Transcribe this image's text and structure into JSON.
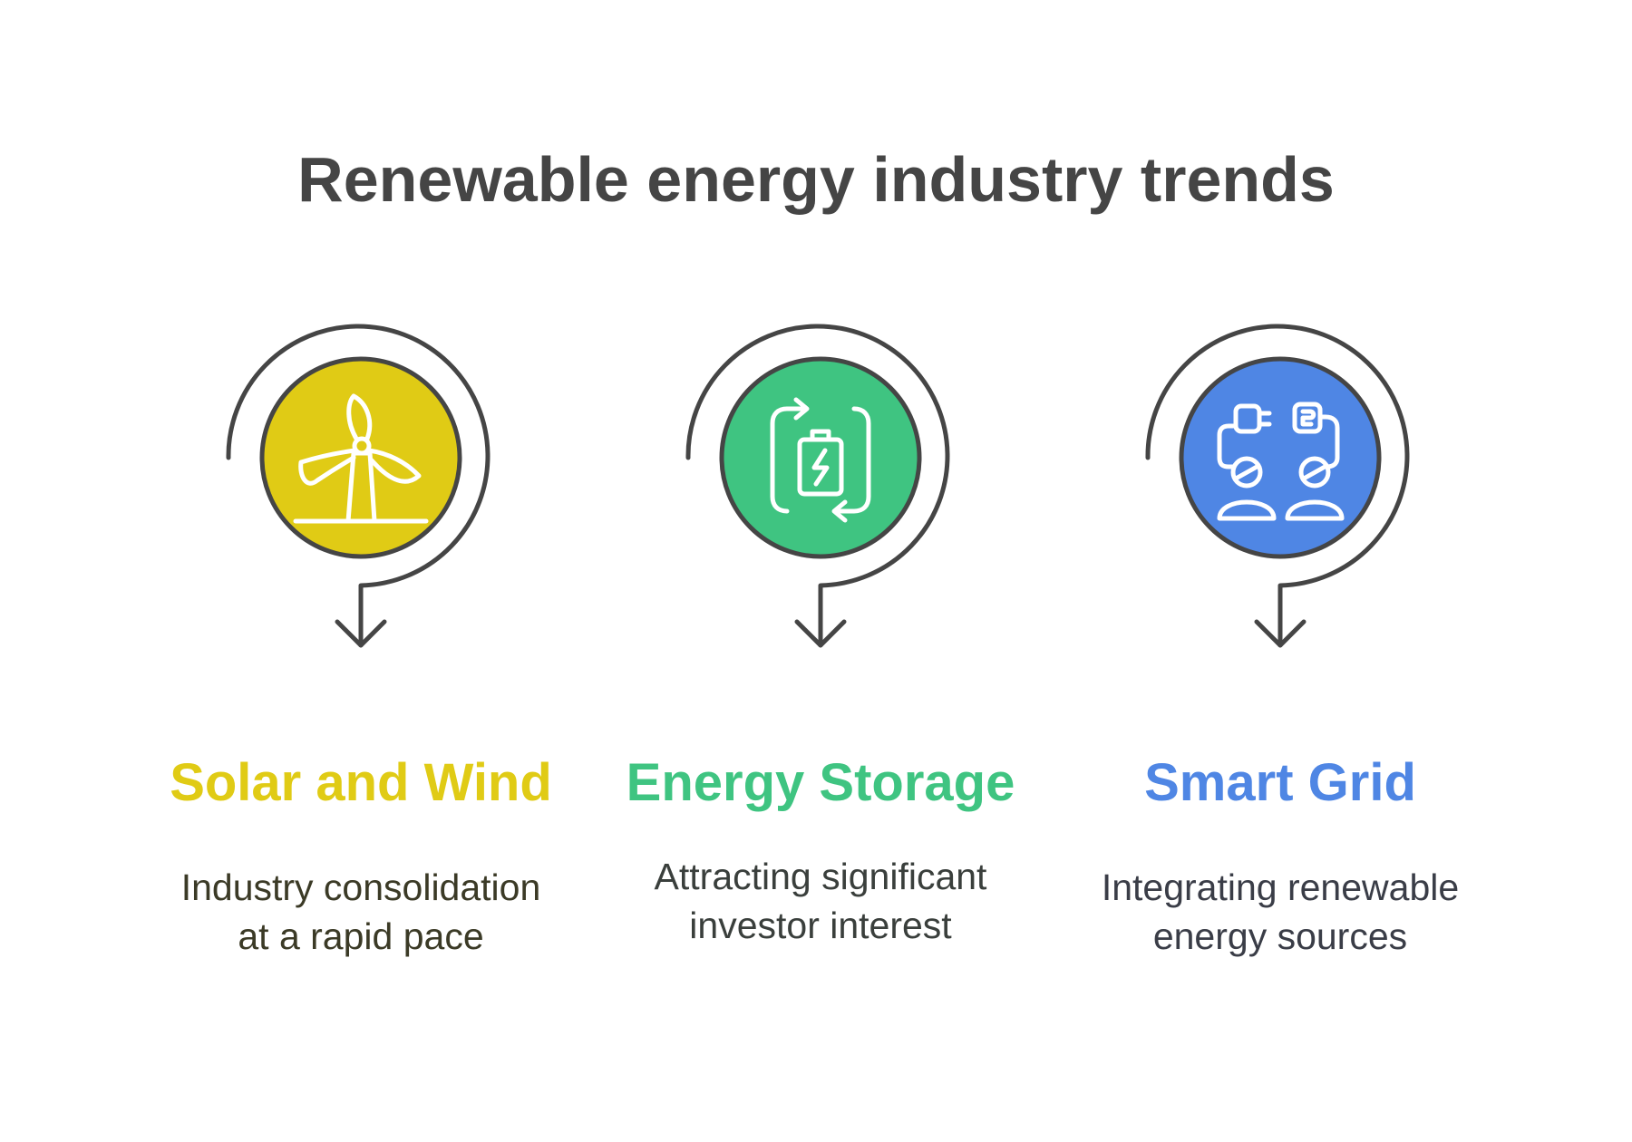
{
  "title": "Renewable energy industry trends",
  "items": [
    {
      "label": "Solar and Wind",
      "description": "Industry consolidation at a rapid pace",
      "color": "#E0CB15",
      "text_color": "#3B3A26",
      "icon": "wind-turbine-icon"
    },
    {
      "label": "Energy Storage",
      "description": "Attracting significant investor interest",
      "color": "#3FC481",
      "text_color": "#3A3F3C",
      "icon": "battery-charging-cycle-icon"
    },
    {
      "label": "Smart Grid",
      "description": "Integrating renewable energy sources",
      "color": "#4F86E4",
      "text_color": "#3A3D47",
      "icon": "plug-connection-people-icon"
    }
  ],
  "colors": {
    "title": "#454545",
    "stroke": "#454545",
    "background": "#FFFFFF"
  }
}
